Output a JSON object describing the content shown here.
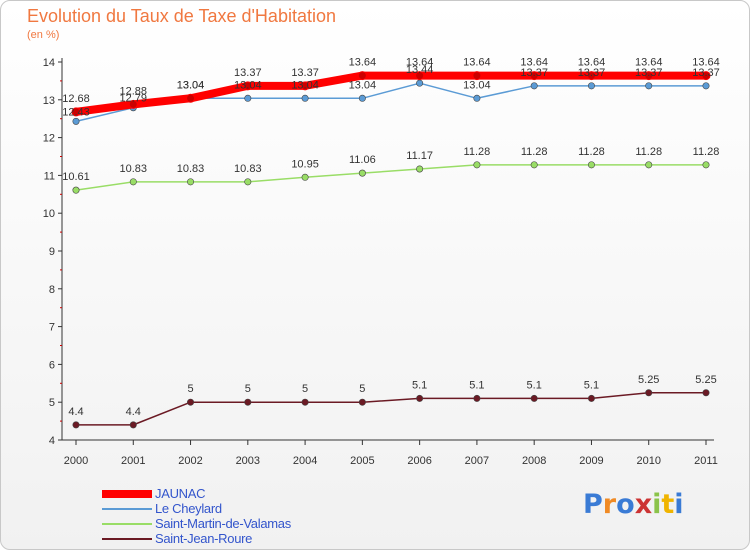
{
  "chart_data": {
    "type": "line",
    "title": "Evolution du Taux de Taxe d'Habitation",
    "subtitle": "(en %)",
    "x": [
      "2000",
      "2001",
      "2002",
      "2003",
      "2004",
      "2005",
      "2006",
      "2007",
      "2008",
      "2009",
      "2010",
      "2011"
    ],
    "ylim": [
      4,
      14
    ],
    "yticks": [
      4,
      5,
      6,
      7,
      8,
      9,
      10,
      11,
      12,
      13,
      14
    ],
    "grid": false,
    "legend_position": "bottom-left",
    "series": [
      {
        "name": "JAUNAC",
        "color": "#ff0000",
        "values": [
          12.68,
          12.88,
          13.04,
          13.37,
          13.37,
          13.64,
          13.64,
          13.64,
          13.64,
          13.64,
          13.64,
          13.64
        ]
      },
      {
        "name": "Le Cheylard",
        "color": "#5b9bd5",
        "values": [
          12.43,
          12.79,
          13.04,
          13.04,
          13.04,
          13.04,
          13.44,
          13.04,
          13.37,
          13.37,
          13.37,
          13.37
        ]
      },
      {
        "name": "Saint-Martin-de-Valamas",
        "color": "#99dd66",
        "values": [
          10.61,
          10.83,
          10.83,
          10.83,
          10.95,
          11.06,
          11.17,
          11.28,
          11.28,
          11.28,
          11.28,
          11.28
        ]
      },
      {
        "name": "Saint-Jean-Roure",
        "color": "#6b1a24",
        "values": [
          4.4,
          4.4,
          5,
          5,
          5,
          5,
          5.1,
          5.1,
          5.1,
          5.1,
          5.25,
          5.25
        ]
      }
    ]
  },
  "legend": {
    "labels": [
      "JAUNAC",
      "Le Cheylard",
      "Saint-Martin-de-Valamas",
      "Saint-Jean-Roure"
    ],
    "label_color": "#3355cc"
  },
  "logo": {
    "text": "Proxiti",
    "colors": [
      "#3a7bd5",
      "#f08a24",
      "#3a7bd5",
      "#cc3333",
      "#8bc34a",
      "#f0b400",
      "#3a7bd5"
    ]
  }
}
